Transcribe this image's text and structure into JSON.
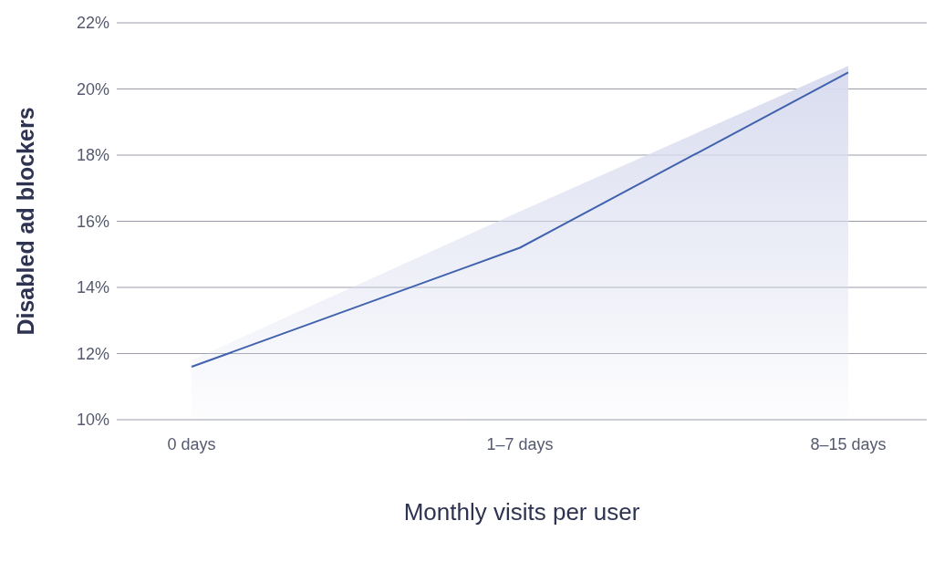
{
  "chart_data": {
    "type": "line",
    "xlabel": "Monthly visits per user",
    "ylabel": "Disabled ad blockers",
    "categories": [
      "0 days",
      "1–7 days",
      "8–15 days"
    ],
    "series": [
      {
        "type": "area",
        "color": "#d9dcef",
        "values": [
          11.8,
          16.3,
          20.7
        ]
      },
      {
        "color": "#4062ae",
        "values": [
          11.6,
          15.2,
          20.5
        ]
      }
    ],
    "ylim": [
      10,
      22
    ],
    "yticks": [
      {
        "value": 10,
        "label": "10%"
      },
      {
        "value": 12,
        "label": "12%"
      },
      {
        "value": 14,
        "label": "14%"
      },
      {
        "value": 16,
        "label": "16%"
      },
      {
        "value": 18,
        "label": "18%"
      },
      {
        "value": 20,
        "label": "20%"
      },
      {
        "value": 22,
        "label": "22%"
      }
    ],
    "grid": "y",
    "legend": false,
    "marker": "none",
    "line_style": "solid"
  }
}
